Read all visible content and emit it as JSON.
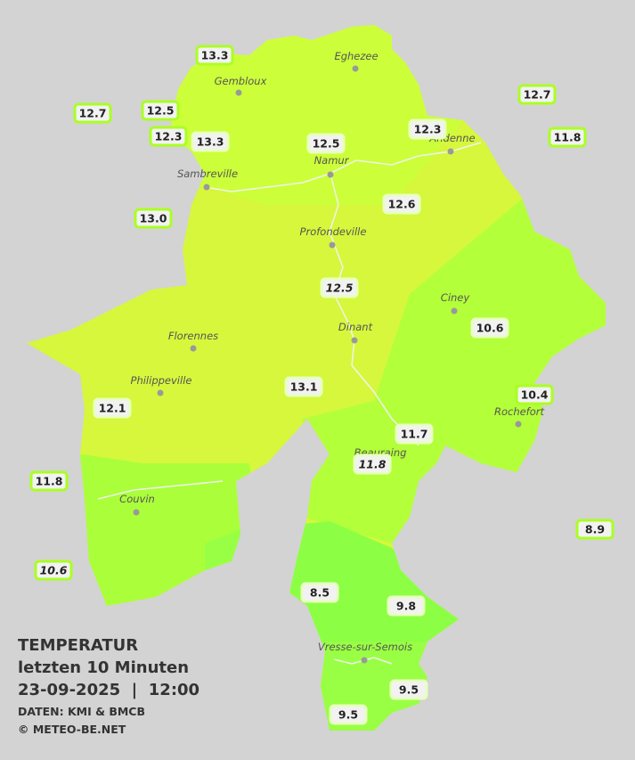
{
  "map": {
    "towns": [
      {
        "name": "Eghezee"
      },
      {
        "name": "Gembloux"
      },
      {
        "name": "Andenne"
      },
      {
        "name": "Namur"
      },
      {
        "name": "Sambreville"
      },
      {
        "name": "Profondeville"
      },
      {
        "name": "Ciney"
      },
      {
        "name": "Dinant"
      },
      {
        "name": "Florennes"
      },
      {
        "name": "Philippeville"
      },
      {
        "name": "Rochefort"
      },
      {
        "name": "Beauraing"
      },
      {
        "name": "Couvin"
      },
      {
        "name": "Vresse-sur-Semois"
      }
    ],
    "stations": [
      {
        "temp": "13.3",
        "outside": true,
        "italic": false
      },
      {
        "temp": "12.7",
        "outside": true,
        "italic": false
      },
      {
        "temp": "12.5",
        "outside": true,
        "italic": false
      },
      {
        "temp": "12.3",
        "outside": true,
        "italic": false
      },
      {
        "temp": "13.3",
        "outside": false,
        "italic": false
      },
      {
        "temp": "12.5",
        "outside": false,
        "italic": false
      },
      {
        "temp": "12.3",
        "outside": false,
        "italic": false
      },
      {
        "temp": "12.7",
        "outside": true,
        "italic": false
      },
      {
        "temp": "11.8",
        "outside": true,
        "italic": false
      },
      {
        "temp": "13.0",
        "outside": true,
        "italic": false
      },
      {
        "temp": "12.6",
        "outside": false,
        "italic": false
      },
      {
        "temp": "12.5",
        "outside": false,
        "italic": true
      },
      {
        "temp": "10.6",
        "outside": false,
        "italic": false
      },
      {
        "temp": "13.1",
        "outside": false,
        "italic": false
      },
      {
        "temp": "12.1",
        "outside": false,
        "italic": false
      },
      {
        "temp": "10.4",
        "outside": true,
        "italic": false
      },
      {
        "temp": "11.7",
        "outside": false,
        "italic": false
      },
      {
        "temp": "11.8",
        "outside": false,
        "italic": true
      },
      {
        "temp": "11.8",
        "outside": true,
        "italic": false
      },
      {
        "temp": "8.9",
        "outside": true,
        "italic": false
      },
      {
        "temp": "10.6",
        "outside": true,
        "italic": true
      },
      {
        "temp": "8.5",
        "outside": false,
        "italic": false
      },
      {
        "temp": "9.8",
        "outside": false,
        "italic": false
      },
      {
        "temp": "9.5",
        "outside": false,
        "italic": false
      },
      {
        "temp": "9.5",
        "outside": false,
        "italic": false
      }
    ],
    "legend": {
      "title": "TEMPERATUR",
      "period": "letzten 10 Minuten",
      "datetime": "23-09-2025  |  12:00",
      "source": "DATEN: KMI & BMCB",
      "copyright": "© METEO-BE.NET"
    }
  }
}
